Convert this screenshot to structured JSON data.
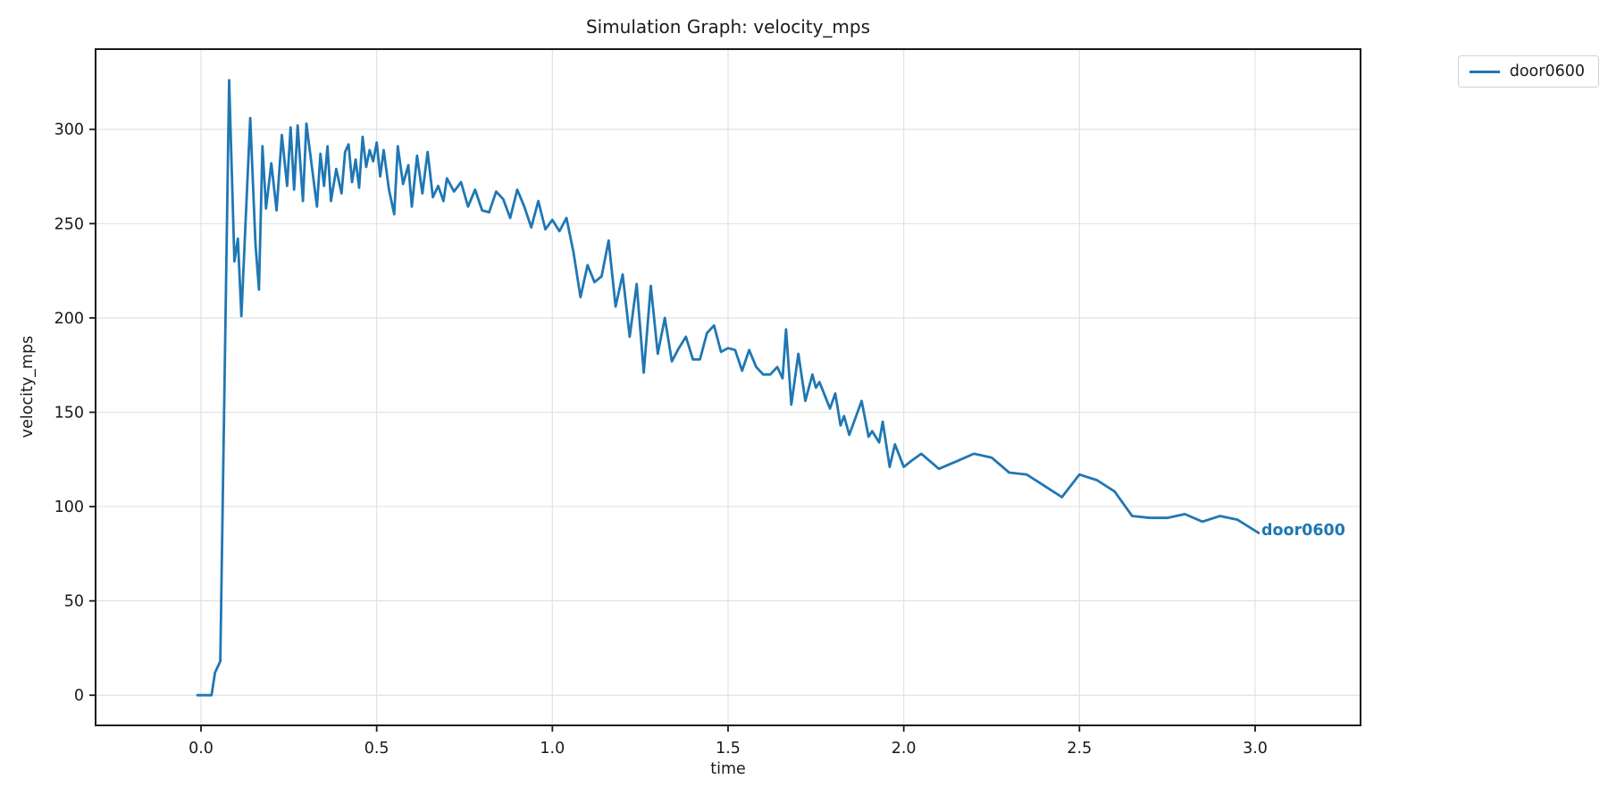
{
  "chart_data": {
    "type": "line",
    "title": "Simulation Graph: velocity_mps",
    "xlabel": "time",
    "ylabel": "velocity_mps",
    "xlim": [
      -0.3,
      3.3
    ],
    "ylim": [
      -16,
      342.5
    ],
    "xtick_values": [
      0.0,
      0.5,
      1.0,
      1.5,
      2.0,
      2.5,
      3.0
    ],
    "xtick_labels": [
      "0.0",
      "0.5",
      "1.0",
      "1.5",
      "2.0",
      "2.5",
      "3.0"
    ],
    "ytick_values": [
      0,
      50,
      100,
      150,
      200,
      250,
      300
    ],
    "ytick_labels": [
      "0",
      "50",
      "100",
      "150",
      "200",
      "250",
      "300"
    ],
    "grid": true,
    "grid_color": "#e2e2e2",
    "axis_color": "#1a1a1a",
    "legend_position": "upper right outside",
    "end_label": "door0600",
    "series": [
      {
        "name": "door0600",
        "color": "#1f77b4",
        "points": [
          [
            -0.01,
            0
          ],
          [
            0.01,
            0
          ],
          [
            0.03,
            0
          ],
          [
            0.04,
            12
          ],
          [
            0.055,
            18
          ],
          [
            0.08,
            326
          ],
          [
            0.095,
            230
          ],
          [
            0.105,
            242
          ],
          [
            0.115,
            201
          ],
          [
            0.14,
            306
          ],
          [
            0.155,
            239
          ],
          [
            0.165,
            215
          ],
          [
            0.175,
            291
          ],
          [
            0.185,
            258
          ],
          [
            0.2,
            282
          ],
          [
            0.215,
            257
          ],
          [
            0.23,
            297
          ],
          [
            0.245,
            270
          ],
          [
            0.255,
            301
          ],
          [
            0.265,
            268
          ],
          [
            0.275,
            302
          ],
          [
            0.29,
            262
          ],
          [
            0.3,
            303
          ],
          [
            0.315,
            281
          ],
          [
            0.33,
            259
          ],
          [
            0.34,
            287
          ],
          [
            0.35,
            270
          ],
          [
            0.36,
            291
          ],
          [
            0.37,
            262
          ],
          [
            0.385,
            279
          ],
          [
            0.4,
            266
          ],
          [
            0.41,
            288
          ],
          [
            0.42,
            292
          ],
          [
            0.43,
            272
          ],
          [
            0.44,
            284
          ],
          [
            0.45,
            269
          ],
          [
            0.46,
            296
          ],
          [
            0.47,
            280
          ],
          [
            0.48,
            289
          ],
          [
            0.49,
            283
          ],
          [
            0.5,
            293
          ],
          [
            0.51,
            275
          ],
          [
            0.52,
            289
          ],
          [
            0.535,
            268
          ],
          [
            0.55,
            255
          ],
          [
            0.56,
            291
          ],
          [
            0.575,
            271
          ],
          [
            0.59,
            281
          ],
          [
            0.6,
            259
          ],
          [
            0.615,
            286
          ],
          [
            0.63,
            266
          ],
          [
            0.645,
            288
          ],
          [
            0.66,
            264
          ],
          [
            0.675,
            270
          ],
          [
            0.69,
            262
          ],
          [
            0.7,
            274
          ],
          [
            0.72,
            267
          ],
          [
            0.74,
            272
          ],
          [
            0.76,
            259
          ],
          [
            0.78,
            268
          ],
          [
            0.8,
            257
          ],
          [
            0.82,
            256
          ],
          [
            0.84,
            267
          ],
          [
            0.86,
            263
          ],
          [
            0.88,
            253
          ],
          [
            0.9,
            268
          ],
          [
            0.92,
            259
          ],
          [
            0.94,
            248
          ],
          [
            0.96,
            262
          ],
          [
            0.98,
            247
          ],
          [
            1.0,
            252
          ],
          [
            1.02,
            246
          ],
          [
            1.04,
            253
          ],
          [
            1.06,
            235
          ],
          [
            1.08,
            211
          ],
          [
            1.1,
            228
          ],
          [
            1.12,
            219
          ],
          [
            1.14,
            222
          ],
          [
            1.16,
            241
          ],
          [
            1.18,
            206
          ],
          [
            1.2,
            223
          ],
          [
            1.22,
            190
          ],
          [
            1.24,
            218
          ],
          [
            1.26,
            171
          ],
          [
            1.28,
            217
          ],
          [
            1.3,
            181
          ],
          [
            1.32,
            200
          ],
          [
            1.34,
            177
          ],
          [
            1.36,
            184
          ],
          [
            1.38,
            190
          ],
          [
            1.4,
            178
          ],
          [
            1.42,
            178
          ],
          [
            1.44,
            192
          ],
          [
            1.46,
            196
          ],
          [
            1.48,
            182
          ],
          [
            1.5,
            184
          ],
          [
            1.52,
            183
          ],
          [
            1.54,
            172
          ],
          [
            1.56,
            183
          ],
          [
            1.58,
            174
          ],
          [
            1.6,
            170
          ],
          [
            1.62,
            170
          ],
          [
            1.64,
            174
          ],
          [
            1.655,
            168
          ],
          [
            1.665,
            194
          ],
          [
            1.68,
            154
          ],
          [
            1.7,
            181
          ],
          [
            1.72,
            156
          ],
          [
            1.74,
            170
          ],
          [
            1.75,
            163
          ],
          [
            1.76,
            166
          ],
          [
            1.79,
            152
          ],
          [
            1.805,
            160
          ],
          [
            1.82,
            143
          ],
          [
            1.83,
            148
          ],
          [
            1.845,
            138
          ],
          [
            1.88,
            156
          ],
          [
            1.9,
            137
          ],
          [
            1.91,
            140
          ],
          [
            1.93,
            134
          ],
          [
            1.94,
            145
          ],
          [
            1.96,
            121
          ],
          [
            1.975,
            133
          ],
          [
            2.0,
            121
          ],
          [
            2.02,
            124
          ],
          [
            2.05,
            128
          ],
          [
            2.1,
            120
          ],
          [
            2.15,
            124
          ],
          [
            2.2,
            128
          ],
          [
            2.25,
            126
          ],
          [
            2.3,
            118
          ],
          [
            2.35,
            117
          ],
          [
            2.4,
            111
          ],
          [
            2.45,
            105
          ],
          [
            2.5,
            117
          ],
          [
            2.55,
            114
          ],
          [
            2.6,
            108
          ],
          [
            2.65,
            95
          ],
          [
            2.7,
            94
          ],
          [
            2.75,
            94
          ],
          [
            2.8,
            96
          ],
          [
            2.85,
            92
          ],
          [
            2.9,
            95
          ],
          [
            2.95,
            93
          ],
          [
            3.01,
            86
          ]
        ]
      }
    ]
  }
}
